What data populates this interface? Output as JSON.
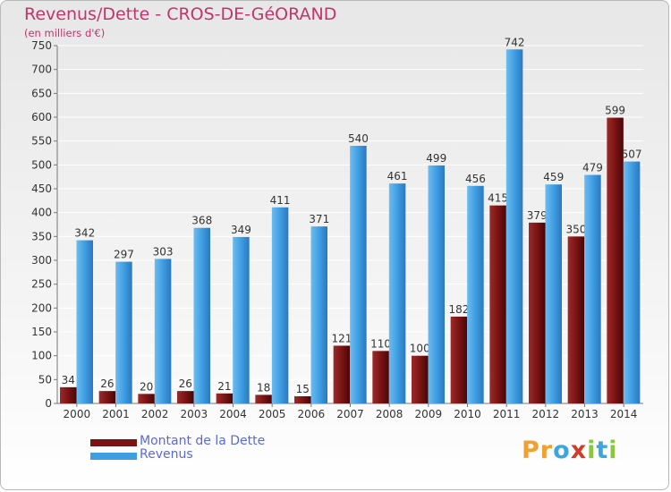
{
  "title": "Revenus/Dette - CROS-DE-GéORAND",
  "subtitle": "(en milliers d'€)",
  "logo": {
    "text": "Proxiti",
    "letters": [
      {
        "ch": "P",
        "color": "#f0a030"
      },
      {
        "ch": "r",
        "color": "#f0a030"
      },
      {
        "ch": "o",
        "color": "#3fa6dd"
      },
      {
        "ch": "x",
        "color": "#d43c2a"
      },
      {
        "ch": "i",
        "color": "#8cc63f"
      },
      {
        "ch": "t",
        "color": "#3fa6dd"
      },
      {
        "ch": "i",
        "color": "#8cc63f"
      }
    ]
  },
  "chart_data": {
    "type": "bar",
    "title": "Revenus/Dette - CROS-DE-GéORAND",
    "subtitle": "(en milliers d'€)",
    "categories": [
      "2000",
      "2001",
      "2002",
      "2003",
      "2004",
      "2005",
      "2006",
      "2007",
      "2008",
      "2009",
      "2010",
      "2011",
      "2012",
      "2013",
      "2014"
    ],
    "series": [
      {
        "name": "Montant de la Dette",
        "color": "#7a1414",
        "values": [
          34,
          26,
          20,
          26,
          21,
          18,
          15,
          121,
          110,
          100,
          182,
          415,
          379,
          350,
          599
        ],
        "labels": [
          "34",
          "26",
          "20",
          "26",
          "21",
          "18",
          "15",
          "121",
          "110",
          "100",
          "182",
          "415",
          "379",
          "350",
          "599"
        ]
      },
      {
        "name": "Revenus",
        "color": "#3f9ee2",
        "values": [
          342,
          297,
          303,
          368,
          349,
          411,
          371,
          540,
          461,
          499,
          456,
          742,
          459,
          479,
          507
        ],
        "labels": [
          "342",
          "297",
          "303",
          "368",
          "349",
          "411",
          "371",
          "540",
          "461",
          "499",
          "456",
          "742",
          "459",
          "479",
          "507"
        ]
      }
    ],
    "ylim": [
      0,
      750
    ],
    "yticks": [
      "0",
      "50",
      "100",
      "150",
      "200",
      "250",
      "300",
      "350",
      "400",
      "450",
      "500",
      "550",
      "600",
      "650",
      "700",
      "750"
    ],
    "grid": true,
    "legend": "bottom-left"
  }
}
